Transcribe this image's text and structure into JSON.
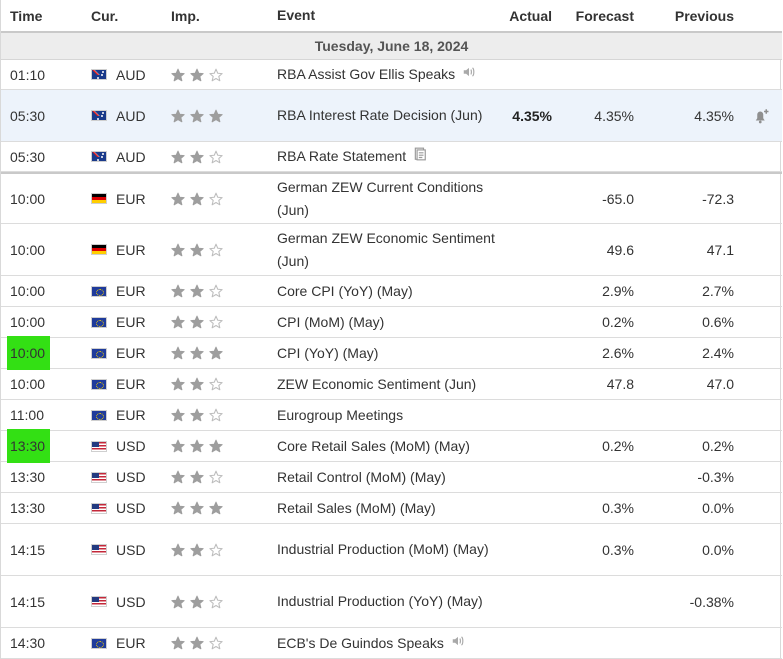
{
  "headers": {
    "time": "Time",
    "currency": "Cur.",
    "importance": "Imp.",
    "event": "Event",
    "actual": "Actual",
    "forecast": "Forecast",
    "previous": "Previous"
  },
  "date_label": "Tuesday, June 18, 2024",
  "colors": {
    "highlight_row": "#edf3fb",
    "time_marker": "#33e014",
    "star_filled": "#9e9e9e",
    "star_empty": "#bdbdbd"
  },
  "rows": [
    {
      "time": "01:10",
      "currency": "AUD",
      "flag": "au-flag-icon",
      "importance": 2,
      "event": "RBA Assist Gov Ellis Speaks",
      "event_icon": "speaker-icon",
      "actual": "",
      "forecast": "",
      "previous": ""
    },
    {
      "time": "05:30",
      "currency": "AUD",
      "flag": "au-flag-icon",
      "importance": 3,
      "event": "RBA Interest Rate Decision (Jun)",
      "actual": "4.35%",
      "forecast": "4.35%",
      "previous": "4.35%",
      "side_icon": "alert-bell-add-icon",
      "highlighted": true
    },
    {
      "time": "05:30",
      "currency": "AUD",
      "flag": "au-flag-icon",
      "importance": 2,
      "event": "RBA Rate Statement",
      "event_icon": "document-icon",
      "actual": "",
      "forecast": "",
      "previous": ""
    },
    {
      "time": "10:00",
      "currency": "EUR",
      "flag": "de-flag-icon",
      "importance": 2,
      "event": "German ZEW Current Conditions (Jun)",
      "actual": "",
      "forecast": "-65.0",
      "previous": "-72.3"
    },
    {
      "time": "10:00",
      "currency": "EUR",
      "flag": "de-flag-icon",
      "importance": 2,
      "event": "German ZEW Economic Sentiment (Jun)",
      "actual": "",
      "forecast": "49.6",
      "previous": "47.1"
    },
    {
      "time": "10:00",
      "currency": "EUR",
      "flag": "eu-flag-icon",
      "importance": 2,
      "event": "Core CPI (YoY) (May)",
      "actual": "",
      "forecast": "2.9%",
      "previous": "2.7%"
    },
    {
      "time": "10:00",
      "currency": "EUR",
      "flag": "eu-flag-icon",
      "importance": 2,
      "event": "CPI (MoM) (May)",
      "actual": "",
      "forecast": "0.2%",
      "previous": "0.6%"
    },
    {
      "time": "10:00",
      "currency": "EUR",
      "flag": "eu-flag-icon",
      "importance": 3,
      "event": "CPI (YoY) (May)",
      "actual": "",
      "forecast": "2.6%",
      "previous": "2.4%",
      "time_marked": true
    },
    {
      "time": "10:00",
      "currency": "EUR",
      "flag": "eu-flag-icon",
      "importance": 2,
      "event": "ZEW Economic Sentiment (Jun)",
      "actual": "",
      "forecast": "47.8",
      "previous": "47.0"
    },
    {
      "time": "11:00",
      "currency": "EUR",
      "flag": "eu-flag-icon",
      "importance": 2,
      "event": "Eurogroup Meetings",
      "actual": "",
      "forecast": "",
      "previous": ""
    },
    {
      "time": "13:30",
      "currency": "USD",
      "flag": "us-flag-icon",
      "importance": 3,
      "event": "Core Retail Sales (MoM) (May)",
      "actual": "",
      "forecast": "0.2%",
      "previous": "0.2%",
      "time_marked": true
    },
    {
      "time": "13:30",
      "currency": "USD",
      "flag": "us-flag-icon",
      "importance": 2,
      "event": "Retail Control (MoM) (May)",
      "actual": "",
      "forecast": "",
      "previous": "-0.3%"
    },
    {
      "time": "13:30",
      "currency": "USD",
      "flag": "us-flag-icon",
      "importance": 3,
      "event": "Retail Sales (MoM) (May)",
      "actual": "",
      "forecast": "0.3%",
      "previous": "0.0%"
    },
    {
      "time": "14:15",
      "currency": "USD",
      "flag": "us-flag-icon",
      "importance": 2,
      "event": "Industrial Production (MoM) (May)",
      "actual": "",
      "forecast": "0.3%",
      "previous": "0.0%"
    },
    {
      "time": "14:15",
      "currency": "USD",
      "flag": "us-flag-icon",
      "importance": 2,
      "event": "Industrial Production (YoY) (May)",
      "actual": "",
      "forecast": "",
      "previous": "-0.38%"
    },
    {
      "time": "14:30",
      "currency": "EUR",
      "flag": "eu-flag-icon",
      "importance": 2,
      "event": "ECB's De Guindos Speaks",
      "event_icon": "speaker-icon",
      "actual": "",
      "forecast": "",
      "previous": ""
    }
  ]
}
